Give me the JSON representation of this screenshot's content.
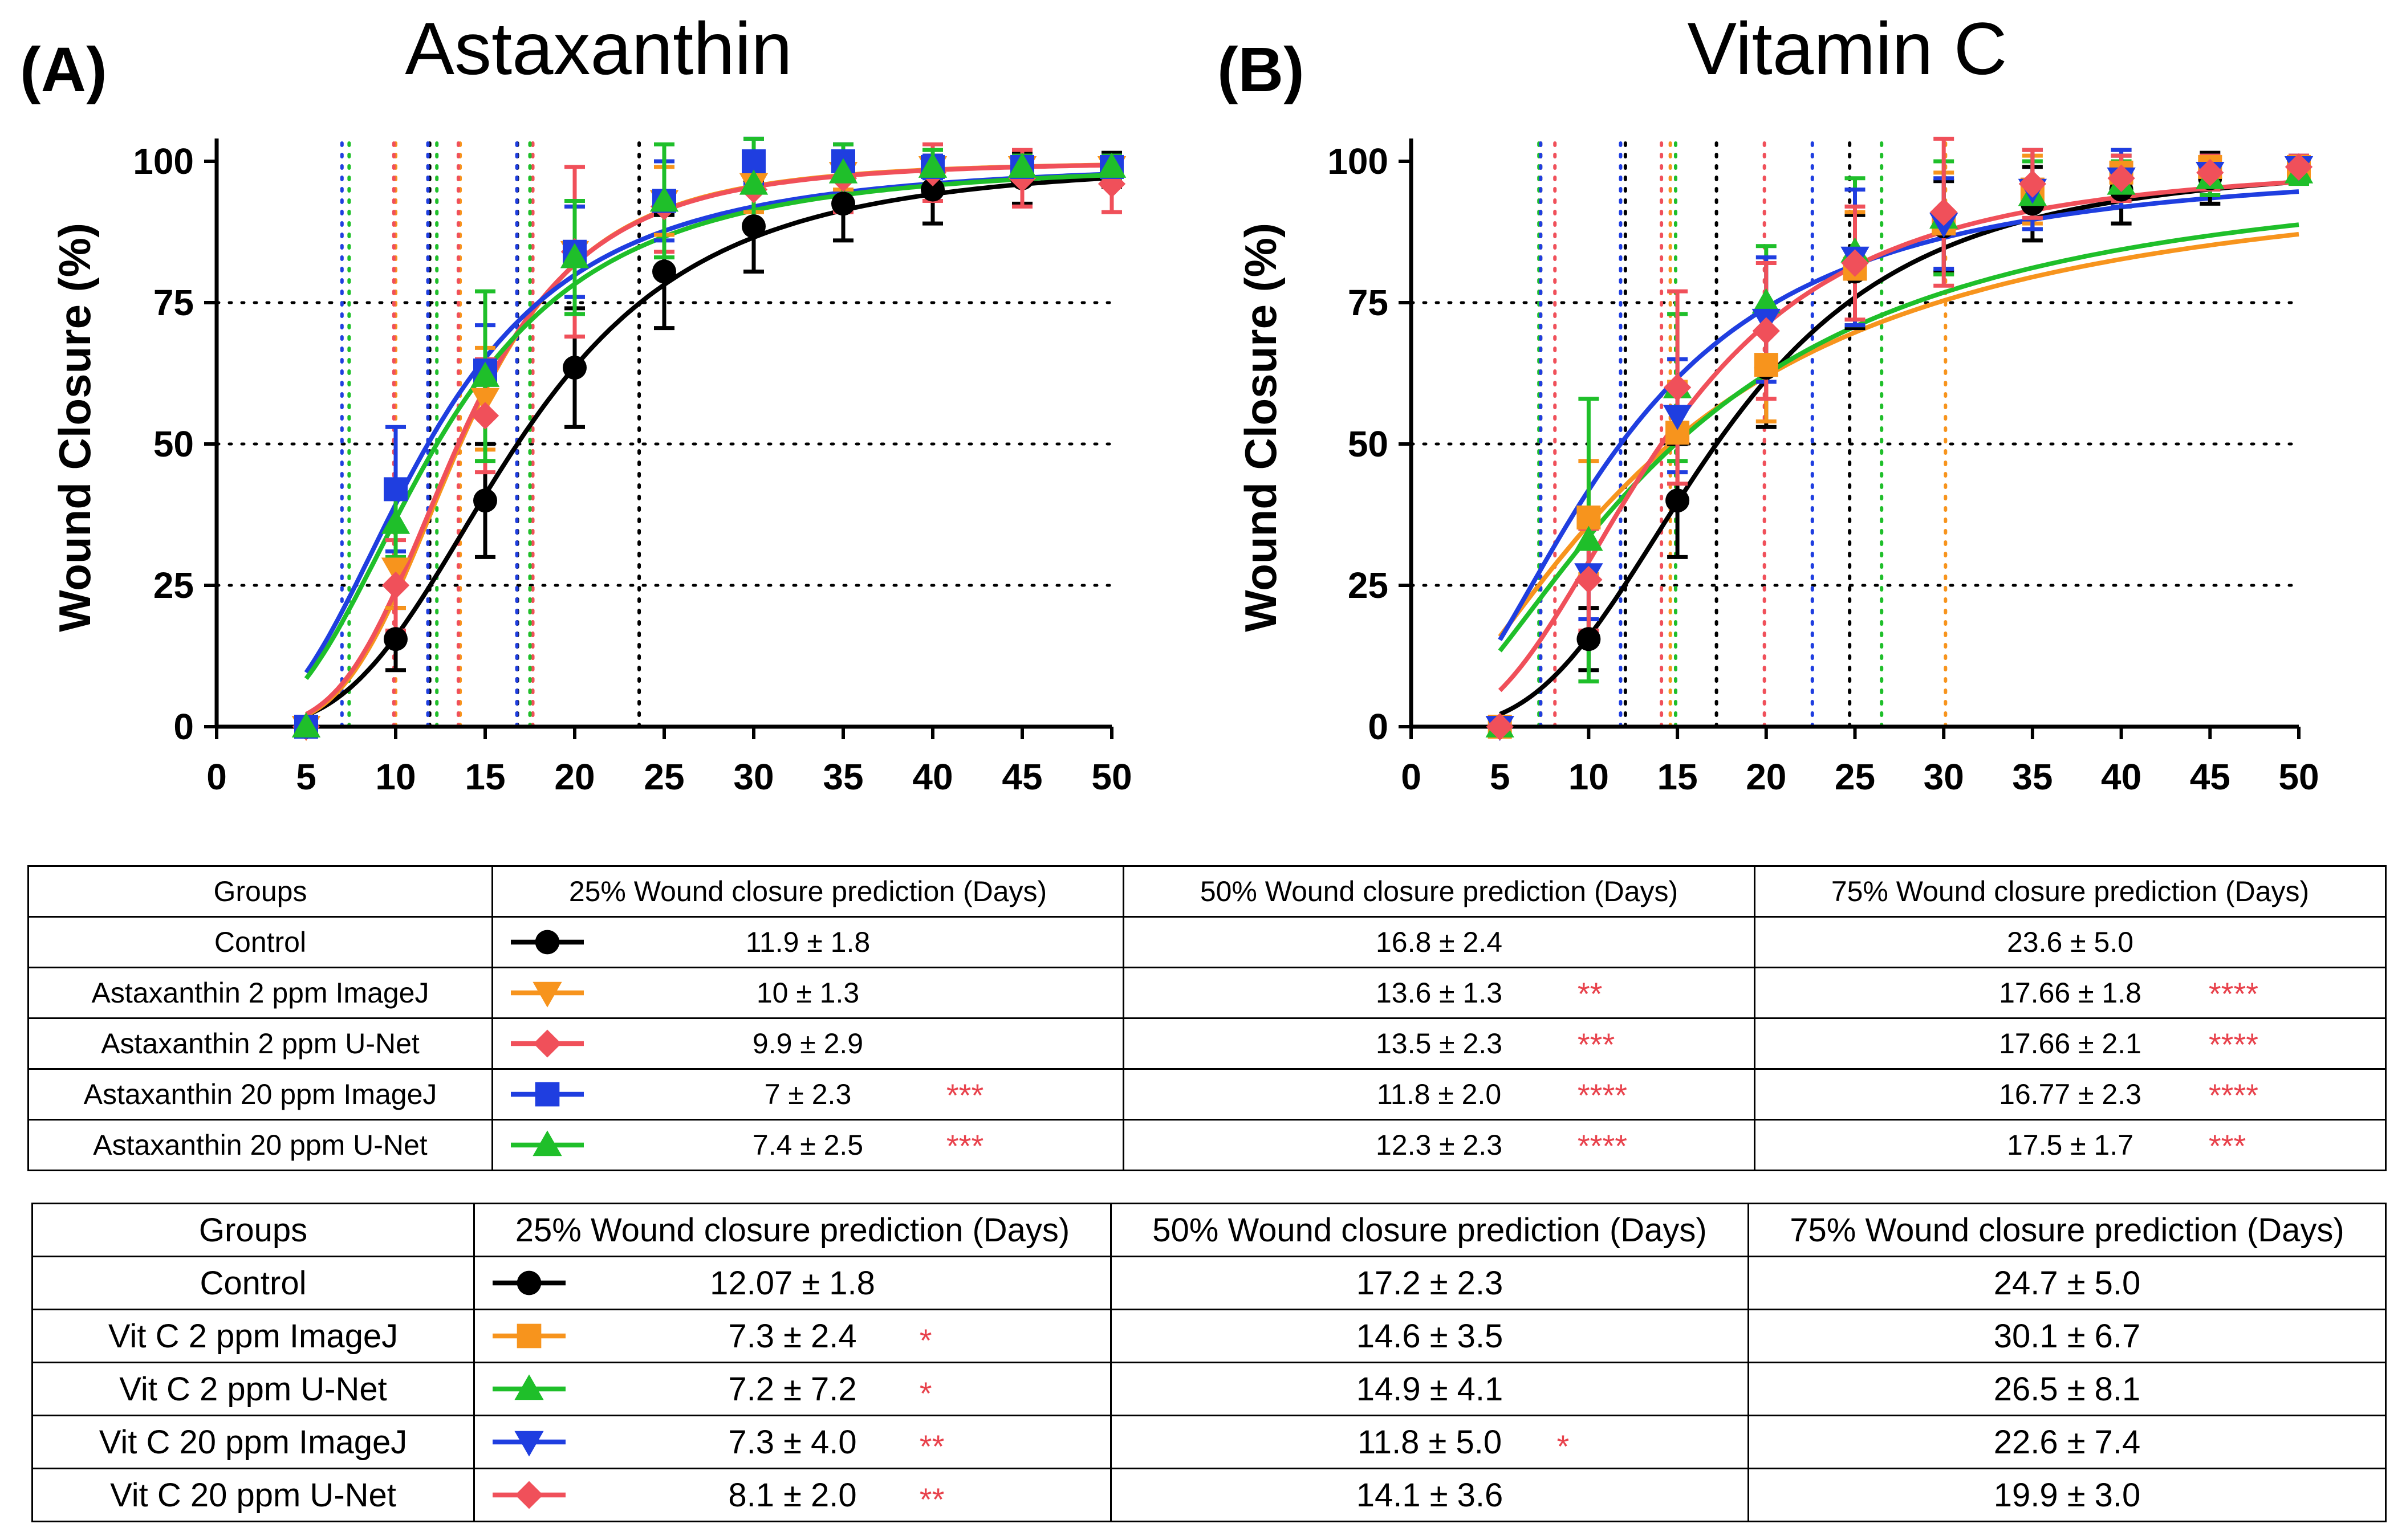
{
  "chart_data": [
    {
      "type": "line",
      "panel_label": "(A)",
      "title": "Astaxanthin",
      "xlabel": "",
      "ylabel": "Wound Closure (%)",
      "xlim": [
        0,
        50
      ],
      "ylim": [
        0,
        100
      ],
      "x_ticks": [
        "0",
        "5",
        "10",
        "15",
        "20",
        "25",
        "30",
        "35",
        "40",
        "45",
        "50"
      ],
      "y_ticks": [
        "0",
        "25",
        "50",
        "75",
        "100"
      ],
      "grid": "dotted horizontal lines at 25, 50, 75",
      "series": [
        {
          "name": "Control",
          "color": "#000000",
          "marker": "circle",
          "x": [
            5,
            10,
            15,
            20,
            25,
            30,
            35,
            40,
            45,
            50
          ],
          "y": [
            0,
            15.5,
            40,
            63.5,
            80.5,
            88.5,
            92.5,
            95,
            97,
            98.5
          ],
          "err": [
            0,
            5.5,
            10,
            10.5,
            10,
            8,
            6.5,
            6,
            4.5,
            3
          ],
          "t25": 11.9,
          "t50": 16.8,
          "t75": 23.6
        },
        {
          "name": "Astaxanthin 2 ppm ImageJ",
          "color": "#f7941d",
          "marker": "triangle-down",
          "x": [
            5,
            10,
            15,
            20,
            25,
            30,
            35,
            40,
            45,
            50
          ],
          "y": [
            0,
            28,
            58,
            84,
            93,
            96,
            98,
            99,
            99,
            99
          ],
          "err": [
            0,
            7,
            9,
            8,
            6,
            5,
            3,
            3,
            2,
            2
          ],
          "t25": 10,
          "t50": 13.6,
          "t75": 17.66
        },
        {
          "name": "Astaxanthin 2 ppm U-Net",
          "color": "#f0505a",
          "marker": "diamond",
          "x": [
            5,
            10,
            15,
            20,
            25,
            30,
            35,
            40,
            45,
            50
          ],
          "y": [
            0,
            25,
            55,
            84,
            92,
            95,
            97,
            98,
            97,
            96
          ],
          "err": [
            0,
            8,
            10,
            15,
            8,
            6,
            6,
            5,
            5,
            5
          ],
          "t25": 9.9,
          "t50": 13.5,
          "t75": 17.66
        },
        {
          "name": "Astaxanthin 20 ppm ImageJ",
          "color": "#1f3ee0",
          "marker": "square",
          "x": [
            5,
            10,
            15,
            20,
            25,
            30,
            35,
            40,
            45,
            50
          ],
          "y": [
            0,
            42,
            63,
            84,
            93,
            100,
            100,
            99,
            99,
            99
          ],
          "err": [
            0,
            11,
            8,
            8,
            7,
            4,
            3,
            2,
            2,
            2
          ],
          "t25": 7,
          "t50": 11.8,
          "t75": 16.77
        },
        {
          "name": "Astaxanthin 20 ppm U-Net",
          "color": "#1fbf2a",
          "marker": "triangle-up",
          "x": [
            5,
            10,
            15,
            20,
            25,
            30,
            35,
            40,
            45,
            50
          ],
          "y": [
            0,
            36,
            62,
            83,
            93,
            96,
            98,
            99,
            99,
            99
          ],
          "err": [
            0,
            6,
            15,
            10,
            10,
            8,
            5,
            3,
            2,
            2
          ],
          "t25": 7.4,
          "t50": 12.3,
          "t75": 17.5
        }
      ]
    },
    {
      "type": "line",
      "panel_label": "(B)",
      "title": "Vitamin C",
      "xlabel": "",
      "ylabel": "Wound Closure (%)",
      "xlim": [
        0,
        50
      ],
      "ylim": [
        0,
        100
      ],
      "x_ticks": [
        "0",
        "5",
        "10",
        "15",
        "20",
        "25",
        "30",
        "35",
        "40",
        "45",
        "50"
      ],
      "y_ticks": [
        "0",
        "25",
        "50",
        "75",
        "100"
      ],
      "grid": "dotted horizontal lines at 25, 50, 75",
      "series": [
        {
          "name": "Control",
          "color": "#000000",
          "marker": "circle",
          "x": [
            5,
            10,
            15,
            20,
            25,
            30,
            35,
            40,
            45,
            50
          ],
          "y": [
            0,
            15.5,
            40,
            63.5,
            80.5,
            88.5,
            92.5,
            95,
            97,
            99
          ],
          "err": [
            0,
            5.5,
            10,
            10.5,
            10,
            8,
            6.5,
            6,
            4.5,
            2
          ],
          "t25": 12.07,
          "t50": 17.2,
          "t75": 24.7
        },
        {
          "name": "Vit C 2 ppm ImageJ",
          "color": "#f7941d",
          "marker": "square",
          "x": [
            5,
            10,
            15,
            20,
            25,
            30,
            35,
            40,
            45,
            50
          ],
          "y": [
            0,
            37,
            52,
            64,
            81,
            89,
            95,
            98,
            99,
            99
          ],
          "err": [
            0,
            10,
            9,
            10,
            10,
            9,
            6,
            4,
            2,
            2
          ],
          "t25": 7.3,
          "t50": 14.6,
          "t75": 30.1
        },
        {
          "name": "Vit C 2 ppm U-Net",
          "color": "#1fbf2a",
          "marker": "triangle-up",
          "x": [
            5,
            10,
            15,
            20,
            25,
            30,
            35,
            40,
            45,
            50
          ],
          "y": [
            0,
            33,
            60,
            75,
            84,
            90,
            94,
            96,
            97,
            98
          ],
          "err": [
            0,
            25,
            13,
            10,
            13,
            10,
            6,
            4,
            3,
            2
          ],
          "t25": 7.2,
          "t50": 14.9,
          "t75": 26.5
        },
        {
          "name": "Vit C 20 ppm ImageJ",
          "color": "#1f3ee0",
          "marker": "triangle-down",
          "x": [
            5,
            10,
            15,
            20,
            25,
            30,
            35,
            40,
            45,
            50
          ],
          "y": [
            0,
            27,
            55,
            72,
            83,
            89,
            95,
            97,
            98,
            99
          ],
          "err": [
            0,
            8,
            10,
            11,
            12,
            8,
            7,
            5,
            3,
            2
          ],
          "t25": 7.3,
          "t50": 11.8,
          "t75": 22.6
        },
        {
          "name": "Vit C 20 ppm U-Net",
          "color": "#f0505a",
          "marker": "diamond",
          "x": [
            5,
            10,
            15,
            20,
            25,
            30,
            35,
            40,
            45,
            50
          ],
          "y": [
            0,
            26,
            60,
            70,
            82,
            91,
            96,
            97,
            98,
            99
          ],
          "err": [
            0,
            9,
            17,
            12,
            10,
            13,
            6,
            4,
            3,
            2
          ],
          "t25": 8.1,
          "t50": 14.1,
          "t75": 19.9
        }
      ]
    }
  ],
  "tables": [
    {
      "headers": [
        "Groups",
        "25% Wound closure prediction (Days)",
        "50% Wound closure prediction (Days)",
        "75% Wound closure prediction (Days)"
      ],
      "rows": [
        {
          "group": "Control",
          "symbol": {
            "color": "#000000",
            "marker": "circle"
          },
          "v25": "11.9 ± 1.8",
          "s25": "",
          "v50": "16.8 ± 2.4",
          "s50": "",
          "v75": "23.6 ± 5.0",
          "s75": ""
        },
        {
          "group": "Astaxanthin 2 ppm ImageJ",
          "symbol": {
            "color": "#f7941d",
            "marker": "triangle-down"
          },
          "v25": "10 ± 1.3",
          "s25": "",
          "v50": "13.6 ± 1.3",
          "s50": "**",
          "v75": "17.66 ± 1.8",
          "s75": "****"
        },
        {
          "group": "Astaxanthin 2 ppm U-Net",
          "symbol": {
            "color": "#f0505a",
            "marker": "diamond"
          },
          "v25": "9.9 ± 2.9",
          "s25": "",
          "v50": "13.5 ± 2.3",
          "s50": "***",
          "v75": "17.66 ± 2.1",
          "s75": "****"
        },
        {
          "group": "Astaxanthin 20 ppm ImageJ",
          "symbol": {
            "color": "#1f3ee0",
            "marker": "square"
          },
          "v25": "7 ± 2.3",
          "s25": "***",
          "v50": "11.8 ± 2.0",
          "s50": "****",
          "v75": "16.77 ± 2.3",
          "s75": "****"
        },
        {
          "group": "Astaxanthin 20 ppm U-Net",
          "symbol": {
            "color": "#1fbf2a",
            "marker": "triangle-up"
          },
          "v25": "7.4 ± 2.5",
          "s25": "***",
          "v50": "12.3 ± 2.3",
          "s50": "****",
          "v75": "17.5 ± 1.7",
          "s75": "***"
        }
      ]
    },
    {
      "headers": [
        "Groups",
        "25% Wound closure prediction (Days)",
        "50% Wound closure prediction (Days)",
        "75% Wound closure prediction (Days)"
      ],
      "rows": [
        {
          "group": "Control",
          "symbol": {
            "color": "#000000",
            "marker": "circle"
          },
          "v25": "12.07 ± 1.8",
          "s25": "",
          "v50": "17.2 ± 2.3",
          "s50": "",
          "v75": "24.7 ± 5.0",
          "s75": ""
        },
        {
          "group": "Vit C 2 ppm ImageJ",
          "symbol": {
            "color": "#f7941d",
            "marker": "square"
          },
          "v25": "7.3 ± 2.4",
          "s25": "*",
          "v50": "14.6 ± 3.5",
          "s50": "",
          "v75": "30.1 ± 6.7",
          "s75": ""
        },
        {
          "group": "Vit C 2 ppm U-Net",
          "symbol": {
            "color": "#1fbf2a",
            "marker": "triangle-up"
          },
          "v25": "7.2 ± 7.2",
          "s25": "*",
          "v50": "14.9 ± 4.1",
          "s50": "",
          "v75": "26.5 ± 8.1",
          "s75": ""
        },
        {
          "group": "Vit C 20 ppm ImageJ",
          "symbol": {
            "color": "#1f3ee0",
            "marker": "triangle-down"
          },
          "v25": "7.3 ± 4.0",
          "s25": "**",
          "v50": "11.8 ± 5.0",
          "s50": "*",
          "v75": "22.6 ± 7.4",
          "s75": ""
        },
        {
          "group": "Vit C 20 ppm U-Net",
          "symbol": {
            "color": "#f0505a",
            "marker": "diamond"
          },
          "v25": "8.1 ± 2.0",
          "s25": "**",
          "v50": "14.1 ± 3.6",
          "s50": "",
          "v75": "19.9 ± 3.0",
          "s75": ""
        }
      ]
    }
  ]
}
